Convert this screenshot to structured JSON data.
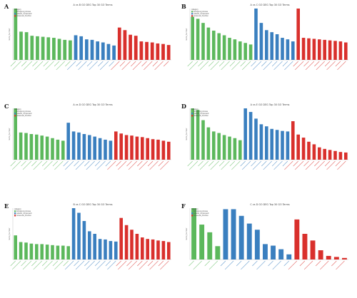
{
  "colors": {
    "biological_process": "#5cb85c",
    "cellular_component": "#3a7fbf",
    "molecular_function": "#d9302c"
  },
  "chart_data": [
    {
      "type": "bar",
      "panel": "A",
      "title": "A vs B GO DEG Top 30 GO Terms",
      "ylabel": "Gene_Number",
      "legend_title": "category",
      "legend": [
        "biological_process",
        "cellular_component",
        "molecular_function"
      ],
      "legend_position": "top-left",
      "ylim": [
        0,
        100
      ],
      "series": [
        {
          "name": "biological_process",
          "values": [
            100,
            55,
            54,
            47,
            46,
            45,
            44,
            43,
            41,
            39,
            38
          ]
        },
        {
          "name": "cellular_component",
          "values": [
            48,
            46,
            40,
            39,
            36,
            34,
            31,
            28
          ]
        },
        {
          "name": "molecular_function",
          "values": [
            63,
            58,
            49,
            47,
            36,
            35,
            34,
            32,
            31,
            29
          ]
        }
      ]
    },
    {
      "type": "bar",
      "panel": "B",
      "title": "A vs C GO DEG Top 30 GO Terms",
      "ylabel": "Gene_Number",
      "legend_title": "category",
      "legend": [
        "biological_process",
        "cellular_component",
        "molecular_function"
      ],
      "legend_position": "top-left",
      "ylim": [
        0,
        100
      ],
      "series": [
        {
          "name": "biological_process",
          "values": [
            84,
            80,
            72,
            63,
            57,
            52,
            48,
            43,
            40,
            36,
            33,
            30
          ]
        },
        {
          "name": "cellular_component",
          "values": [
            100,
            72,
            58,
            54,
            50,
            43,
            40,
            36
          ]
        },
        {
          "name": "molecular_function",
          "values": [
            100,
            43,
            42,
            41,
            40,
            39,
            38,
            37,
            36,
            34
          ]
        }
      ]
    },
    {
      "type": "bar",
      "panel": "C",
      "title": "A vs D GO DEG Top 30 GO Terms",
      "ylabel": "Gene_Number",
      "legend_title": "category",
      "legend": [
        "biological_process",
        "cellular_component",
        "molecular_function"
      ],
      "legend_position": "top-left",
      "ylim": [
        0,
        100
      ],
      "series": [
        {
          "name": "biological_process",
          "values": [
            100,
            53,
            52,
            50,
            49,
            47,
            45,
            42,
            39,
            37
          ]
        },
        {
          "name": "cellular_component",
          "values": [
            72,
            55,
            53,
            50,
            48,
            45,
            42,
            39,
            37
          ]
        },
        {
          "name": "molecular_function",
          "values": [
            55,
            51,
            48,
            47,
            45,
            44,
            42,
            40,
            39,
            37,
            35
          ]
        }
      ]
    },
    {
      "type": "bar",
      "panel": "D",
      "title": "A vs E GO DEG Top 30 GO Terms",
      "ylabel": "Gene_Number",
      "legend_title": "category",
      "legend": [
        "biological_process",
        "cellular_component",
        "molecular_function"
      ],
      "legend_position": "top-left",
      "ylim": [
        0,
        100
      ],
      "series": [
        {
          "name": "biological_process",
          "values": [
            100,
            97,
            77,
            63,
            55,
            52,
            48,
            45,
            42,
            38
          ]
        },
        {
          "name": "cellular_component",
          "values": [
            100,
            93,
            80,
            69,
            65,
            60,
            58,
            56,
            55
          ]
        },
        {
          "name": "molecular_function",
          "values": [
            75,
            49,
            43,
            35,
            30,
            24,
            21,
            19,
            17,
            15,
            14
          ]
        }
      ]
    },
    {
      "type": "bar",
      "panel": "E",
      "title": "B vs C GO DEG Top 30 GO Terms",
      "ylabel": "Gene_Number",
      "legend_title": "category",
      "legend": [
        "biological_process",
        "cellular_component",
        "molecular_function"
      ],
      "legend_position": "top-left",
      "ylim": [
        0,
        100
      ],
      "series": [
        {
          "name": "biological_process",
          "values": [
            47,
            34,
            33,
            31,
            30,
            30,
            29,
            28,
            27,
            27,
            26
          ]
        },
        {
          "name": "cellular_component",
          "values": [
            100,
            91,
            75,
            55,
            50,
            40,
            39,
            36,
            35
          ]
        },
        {
          "name": "molecular_function",
          "values": [
            81,
            67,
            58,
            50,
            43,
            40,
            39,
            37,
            36,
            34
          ]
        }
      ]
    },
    {
      "type": "bar",
      "panel": "F",
      "title": "C vs D GO DEG Top 30 GO Terms",
      "ylabel": "Gene_Number",
      "legend_title": "category",
      "legend": [
        "biological_process",
        "cellular_component",
        "molecular_function"
      ],
      "legend_position": "top-left",
      "ylim": [
        0,
        100
      ],
      "series": [
        {
          "name": "biological_process",
          "values": [
            100,
            68,
            53,
            26
          ]
        },
        {
          "name": "cellular_component",
          "values": [
            98,
            98,
            85,
            70,
            58,
            30,
            27,
            20,
            10
          ]
        },
        {
          "name": "molecular_function",
          "values": [
            78,
            50,
            37,
            18,
            7,
            5,
            3
          ]
        }
      ]
    }
  ]
}
